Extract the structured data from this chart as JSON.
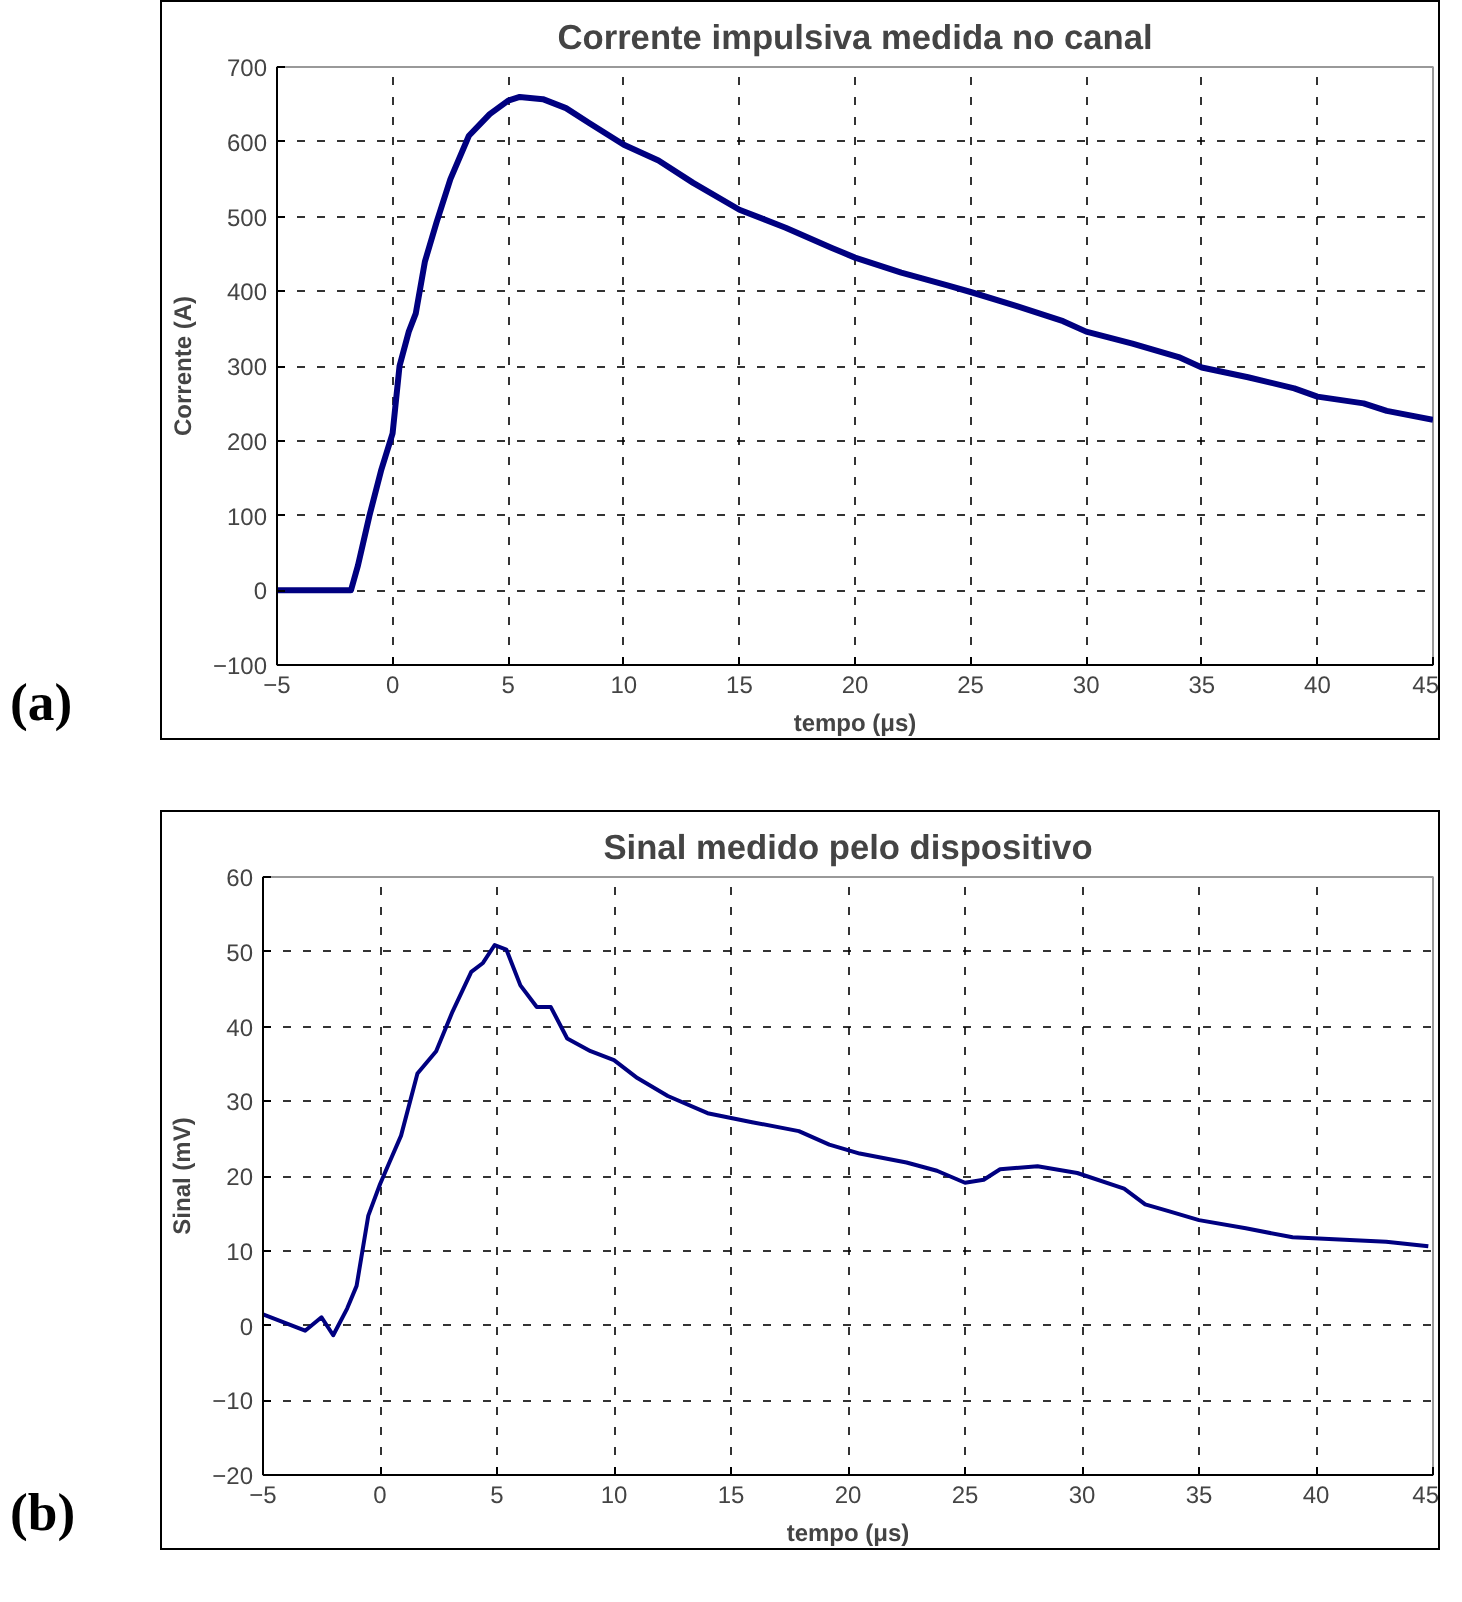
{
  "chart_data": [
    {
      "type": "line",
      "title": "Corrente impulsiva medida no canal",
      "xlabel": "tempo (μs)",
      "ylabel": "Corrente (A)",
      "annotations": [
        "(a)"
      ],
      "xlim": [
        -5,
        45
      ],
      "ylim": [
        -100,
        700
      ],
      "xticks": [
        -5,
        0,
        5,
        10,
        15,
        20,
        25,
        30,
        35,
        40,
        45
      ],
      "yticks": [
        -100,
        0,
        100,
        200,
        300,
        400,
        500,
        600,
        700
      ],
      "grid": true,
      "series": [
        {
          "color": "#000080",
          "x": [
            -5,
            -4,
            -3,
            -2,
            -1.8,
            -1.5,
            -1,
            -0.5,
            0,
            0.3,
            0.7,
            1,
            1.4,
            1.9,
            2.5,
            3.3,
            4.2,
            5,
            5.5,
            6.5,
            7.5,
            8.5,
            10,
            11.5,
            13,
            15,
            17,
            19,
            20,
            22,
            24,
            25,
            27,
            29,
            30,
            32,
            34,
            35,
            37,
            39,
            40,
            42,
            43,
            45
          ],
          "values": [
            0,
            0,
            0,
            0,
            0,
            33,
            100,
            160,
            210,
            300,
            346,
            370,
            440,
            492,
            550,
            608,
            637,
            655,
            660,
            657,
            645,
            625,
            596,
            575,
            545,
            509,
            485,
            458,
            445,
            425,
            408,
            399,
            380,
            360,
            346,
            330,
            312,
            298,
            285,
            270,
            259,
            250,
            240,
            228
          ]
        }
      ]
    },
    {
      "type": "line",
      "title": "Sinal medido pelo dispositivo",
      "xlabel": "tempo (μs)",
      "ylabel": "Sinal (mV)",
      "annotations": [
        "(b)"
      ],
      "xlim": [
        -5,
        45
      ],
      "ylim": [
        -20,
        60
      ],
      "xticks": [
        -5,
        0,
        5,
        10,
        15,
        20,
        25,
        30,
        35,
        40,
        45
      ],
      "yticks": [
        -20,
        -10,
        0,
        10,
        20,
        30,
        40,
        50,
        60
      ],
      "grid": true,
      "series": [
        {
          "color": "#000080",
          "x": [
            -5,
            -3.2,
            -2.5,
            -2,
            -1.4,
            -1,
            -0.5,
            0,
            0.4,
            0.9,
            1.6,
            2.4,
            3.1,
            3.9,
            4.4,
            4.9,
            5.4,
            6,
            6.7,
            7.3,
            8,
            9,
            10,
            11,
            12.3,
            14,
            15.9,
            17.9,
            19.2,
            20.5,
            22.5,
            23.8,
            25,
            25.8,
            26.5,
            28.1,
            29.8,
            31.8,
            32.7,
            33.7,
            35,
            37,
            39,
            41,
            43,
            44.8
          ],
          "values": [
            1.5,
            -0.7,
            1.1,
            -1.3,
            2.3,
            5.3,
            14.7,
            18.9,
            21.8,
            25.4,
            33.7,
            36.7,
            42,
            47.3,
            48.5,
            50.9,
            50.3,
            45.5,
            42.6,
            42.6,
            38.4,
            36.7,
            35.5,
            33.1,
            30.7,
            28.4,
            27.2,
            26,
            24.2,
            23,
            21.8,
            20.7,
            19.1,
            19.5,
            20.9,
            21.3,
            20.4,
            18.3,
            16.2,
            15.3,
            14.1,
            13,
            11.8,
            11.5,
            11.2,
            10.6
          ]
        }
      ]
    }
  ]
}
